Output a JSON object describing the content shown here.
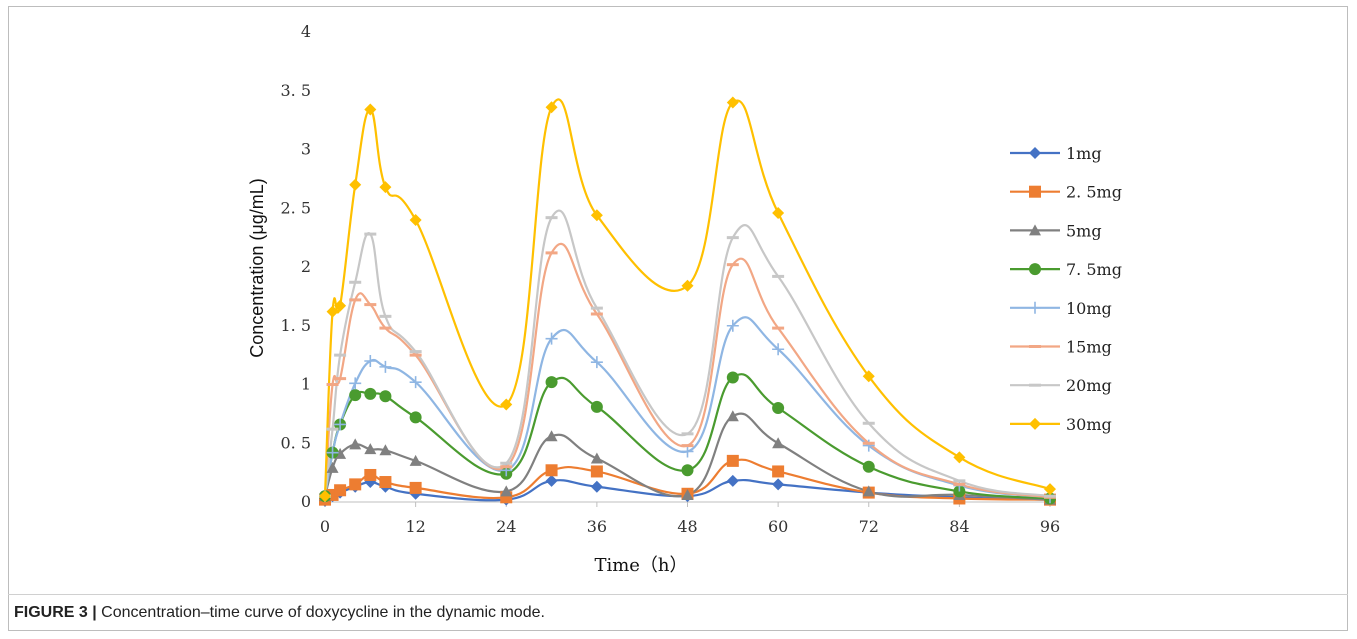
{
  "caption": {
    "label": "FIGURE 3 |",
    "text": " Concentration–time curve of doxycycline in the dynamic mode."
  },
  "chart_data": {
    "type": "line",
    "xlabel": "Time（h）",
    "ylabel": "Concentration (μg/mL)",
    "xlim": [
      0,
      96
    ],
    "ylim": [
      0,
      4
    ],
    "xticks": [
      0,
      12,
      24,
      36,
      48,
      60,
      72,
      84,
      96
    ],
    "yticks": [
      0,
      0.5,
      1,
      1.5,
      2,
      2.5,
      3,
      3.5,
      4
    ],
    "ytick_labels": [
      "0",
      "0. 5",
      "1",
      "1. 5",
      "2",
      "2. 5",
      "3",
      "3. 5",
      "4"
    ],
    "legend_position": "right",
    "grid": false,
    "x": [
      0,
      1,
      2,
      4,
      6,
      8,
      12,
      24,
      30,
      36,
      48,
      54,
      60,
      72,
      84,
      96
    ],
    "series": [
      {
        "name": "1mg",
        "color": "#4472c4",
        "marker": "diamond",
        "values": [
          0.01,
          0.05,
          0.08,
          0.13,
          0.17,
          0.13,
          0.07,
          0.02,
          0.18,
          0.13,
          0.05,
          0.18,
          0.15,
          0.08,
          0.04,
          0.02
        ]
      },
      {
        "name": "2. 5mg",
        "color": "#ed7d31",
        "marker": "square",
        "values": [
          0.02,
          0.06,
          0.1,
          0.15,
          0.23,
          0.17,
          0.12,
          0.04,
          0.27,
          0.26,
          0.07,
          0.35,
          0.26,
          0.08,
          0.03,
          0.02
        ]
      },
      {
        "name": "5mg",
        "color": "#808080",
        "marker": "triangle",
        "values": [
          0.05,
          0.29,
          0.41,
          0.49,
          0.45,
          0.44,
          0.35,
          0.09,
          0.56,
          0.37,
          0.06,
          0.73,
          0.5,
          0.09,
          0.06,
          0.02
        ]
      },
      {
        "name": "7. 5mg",
        "color": "#4a9b2f",
        "marker": "circle",
        "values": [
          0.05,
          0.42,
          0.66,
          0.91,
          0.92,
          0.9,
          0.72,
          0.24,
          1.02,
          0.81,
          0.27,
          1.06,
          0.8,
          0.3,
          0.09,
          0.03
        ]
      },
      {
        "name": "10mg",
        "color": "#8fb6e3",
        "marker": "plus",
        "values": [
          0.05,
          0.42,
          0.66,
          1.01,
          1.2,
          1.15,
          1.02,
          0.27,
          1.39,
          1.19,
          0.43,
          1.5,
          1.3,
          0.48,
          0.14,
          0.04
        ]
      },
      {
        "name": "15mg",
        "color": "#f2a785",
        "marker": "dash",
        "values": [
          0.05,
          1.0,
          1.05,
          1.72,
          1.68,
          1.48,
          1.25,
          0.3,
          2.12,
          1.6,
          0.48,
          2.02,
          1.48,
          0.5,
          0.15,
          0.04
        ]
      },
      {
        "name": "20mg",
        "color": "#c7c7c7",
        "marker": "dash",
        "values": [
          0.05,
          0.62,
          1.25,
          1.87,
          2.28,
          1.58,
          1.28,
          0.33,
          2.42,
          1.65,
          0.58,
          2.25,
          1.92,
          0.67,
          0.18,
          0.05
        ]
      },
      {
        "name": "30mg",
        "color": "#ffc000",
        "marker": "diamond",
        "values": [
          0.05,
          1.62,
          1.67,
          2.7,
          3.34,
          2.68,
          2.4,
          0.83,
          3.36,
          2.44,
          1.84,
          3.4,
          2.46,
          1.07,
          0.38,
          0.11
        ]
      }
    ]
  }
}
